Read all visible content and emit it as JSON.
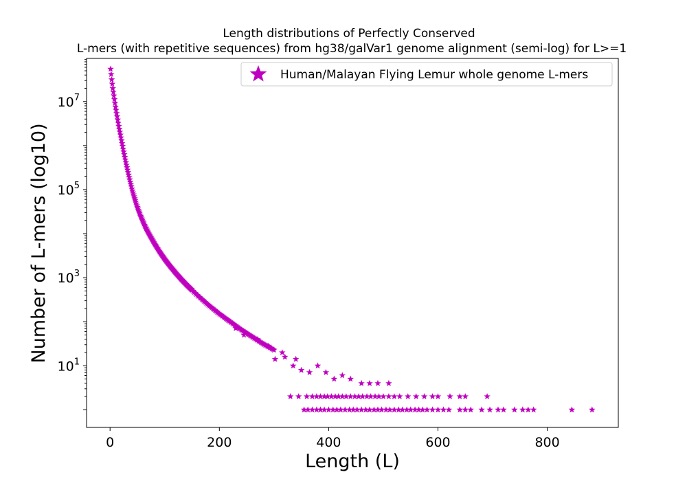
{
  "chart_data": {
    "type": "scatter",
    "title_lines": [
      "Length distributions of Perfectly Conserved",
      "L-mers (with repetitive sequences) from hg38/galVar1 genome alignment (semi-log) for L>=1"
    ],
    "xlabel": "Length (L)",
    "ylabel": "Number of L-mers (log10)",
    "xlim": [
      -43,
      930
    ],
    "ylim_log10": [
      -0.4,
      7.98
    ],
    "y_scale": "log",
    "x_ticks": [
      0,
      200,
      400,
      600,
      800
    ],
    "x_tick_labels": [
      "0",
      "200",
      "400",
      "600",
      "800"
    ],
    "y_ticks_exponents": [
      1,
      3,
      5,
      7
    ],
    "y_tick_base": "10",
    "legend_position": "top-right",
    "marker": "star",
    "color": "#bf00bf",
    "grid": false,
    "series": [
      {
        "name": "Human/Malayan Flying Lemur whole genome L-mers",
        "curve_log10_y": [
          [
            1,
            7.74
          ],
          [
            3,
            7.5
          ],
          [
            5,
            7.3
          ],
          [
            8,
            7.05
          ],
          [
            10,
            6.88
          ],
          [
            13,
            6.66
          ],
          [
            16,
            6.44
          ],
          [
            20,
            6.18
          ],
          [
            25,
            5.86
          ],
          [
            30,
            5.56
          ],
          [
            35,
            5.28
          ],
          [
            40,
            5.02
          ],
          [
            45,
            4.8
          ],
          [
            50,
            4.6
          ],
          [
            55,
            4.43
          ],
          [
            60,
            4.28
          ],
          [
            65,
            4.14
          ],
          [
            70,
            4.02
          ],
          [
            80,
            3.8
          ],
          [
            90,
            3.6
          ],
          [
            100,
            3.42
          ],
          [
            110,
            3.26
          ],
          [
            120,
            3.11
          ],
          [
            130,
            2.97
          ],
          [
            140,
            2.84
          ],
          [
            150,
            2.72
          ],
          [
            160,
            2.6
          ],
          [
            170,
            2.49
          ],
          [
            180,
            2.38
          ],
          [
            190,
            2.28
          ],
          [
            200,
            2.18
          ],
          [
            220,
            2.0
          ],
          [
            240,
            1.82
          ],
          [
            260,
            1.66
          ],
          [
            280,
            1.5
          ],
          [
            300,
            1.36
          ],
          [
            330,
            1.16
          ],
          [
            360,
            0.98
          ],
          [
            400,
            0.8
          ],
          [
            450,
            0.6
          ],
          [
            500,
            0.45
          ]
        ],
        "scatter_points": [
          [
            302,
            1.15
          ],
          [
            320,
            1.2
          ],
          [
            335,
            1.0
          ],
          [
            350,
            0.9
          ],
          [
            365,
            0.85
          ],
          [
            380,
            1.0
          ],
          [
            395,
            0.85
          ],
          [
            410,
            0.7
          ],
          [
            425,
            0.78
          ],
          [
            440,
            0.7
          ],
          [
            460,
            0.6
          ],
          [
            475,
            0.6
          ],
          [
            490,
            0.6
          ],
          [
            510,
            0.6
          ],
          [
            230,
            1.85
          ],
          [
            245,
            1.7
          ],
          [
            270,
            1.6
          ],
          [
            290,
            1.45
          ],
          [
            315,
            1.3
          ],
          [
            340,
            1.15
          ]
        ],
        "points_at_y2": [
          330,
          345,
          360,
          370,
          378,
          385,
          392,
          398,
          405,
          412,
          418,
          425,
          432,
          440,
          448,
          455,
          462,
          470,
          477,
          485,
          492,
          500,
          510,
          520,
          530,
          545,
          560,
          575,
          590,
          600,
          622,
          640,
          650,
          690
        ],
        "points_at_y1": [
          355,
          362,
          370,
          378,
          385,
          392,
          400,
          408,
          415,
          422,
          430,
          438,
          445,
          452,
          460,
          468,
          475,
          483,
          490,
          497,
          505,
          512,
          520,
          528,
          535,
          543,
          550,
          558,
          565,
          572,
          580,
          590,
          600,
          610,
          620,
          640,
          650,
          660,
          680,
          695,
          710,
          720,
          740,
          755,
          765,
          775,
          845,
          882
        ]
      }
    ]
  }
}
